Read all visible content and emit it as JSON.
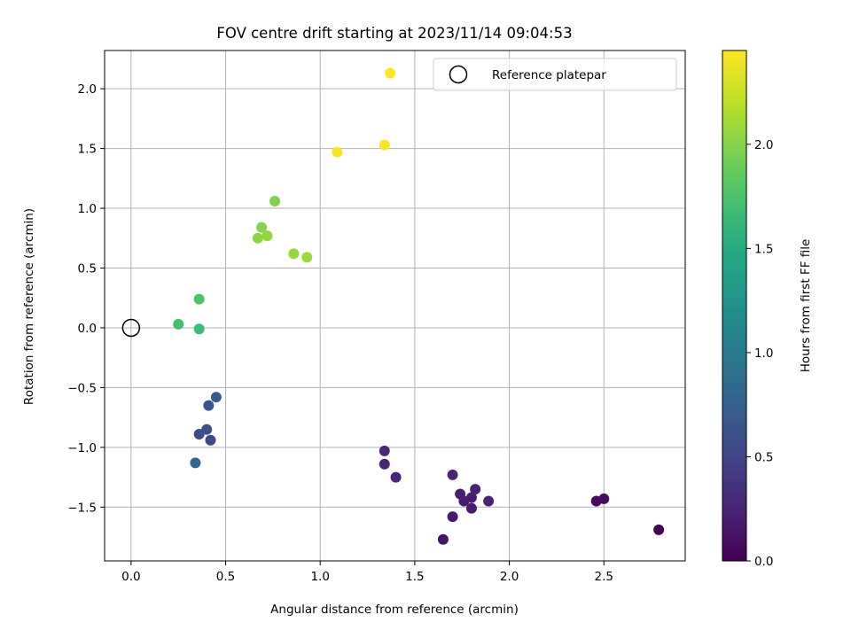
{
  "chart_data": {
    "type": "scatter",
    "title": "FOV centre drift starting at 2023/11/14 09:04:53",
    "xlabel": "Angular distance from reference (arcmin)",
    "ylabel": "Rotation from reference (arcmin)",
    "xlim": [
      -0.14,
      2.93
    ],
    "ylim": [
      -1.95,
      2.32
    ],
    "xticks": [
      0.0,
      0.5,
      1.0,
      1.5,
      2.0,
      2.5
    ],
    "yticks": [
      -1.5,
      -1.0,
      -0.5,
      0.0,
      0.5,
      1.0,
      1.5,
      2.0
    ],
    "xtick_labels": [
      "0.0",
      "0.5",
      "1.0",
      "1.5",
      "2.0",
      "2.5"
    ],
    "ytick_labels": [
      "−1.5",
      "−1.0",
      "−0.5",
      "0.0",
      "0.5",
      "1.0",
      "1.5",
      "2.0"
    ],
    "grid": true,
    "legend": {
      "location": "upper right",
      "entries": [
        {
          "label": "Reference platepar",
          "marker": "open-circle"
        }
      ]
    },
    "reference_point": {
      "x": 0.0,
      "y": 0.0
    },
    "colorbar": {
      "label": "Hours from first FF file",
      "colormap": "viridis",
      "range": [
        0.0,
        2.45
      ],
      "ticks": [
        0.0,
        0.5,
        1.0,
        1.5,
        2.0
      ],
      "tick_labels": [
        "0.0",
        "0.5",
        "1.0",
        "1.5",
        "2.0"
      ]
    },
    "series": [
      {
        "points": [
          {
            "x": 2.79,
            "y": -1.69,
            "c": 0.0
          },
          {
            "x": 2.46,
            "y": -1.45,
            "c": 0.05
          },
          {
            "x": 2.5,
            "y": -1.43,
            "c": 0.08
          },
          {
            "x": 1.65,
            "y": -1.77,
            "c": 0.14
          },
          {
            "x": 1.7,
            "y": -1.58,
            "c": 0.17
          },
          {
            "x": 1.8,
            "y": -1.51,
            "c": 0.19
          },
          {
            "x": 1.76,
            "y": -1.45,
            "c": 0.2
          },
          {
            "x": 1.8,
            "y": -1.42,
            "c": 0.21
          },
          {
            "x": 1.74,
            "y": -1.39,
            "c": 0.22
          },
          {
            "x": 1.82,
            "y": -1.35,
            "c": 0.23
          },
          {
            "x": 1.89,
            "y": -1.45,
            "c": 0.24
          },
          {
            "x": 1.7,
            "y": -1.23,
            "c": 0.25
          },
          {
            "x": 1.4,
            "y": -1.25,
            "c": 0.26
          },
          {
            "x": 1.34,
            "y": -1.14,
            "c": 0.27
          },
          {
            "x": 1.34,
            "y": -1.03,
            "c": 0.28
          },
          {
            "x": 0.42,
            "y": -0.94,
            "c": 0.52
          },
          {
            "x": 0.36,
            "y": -0.89,
            "c": 0.56
          },
          {
            "x": 0.4,
            "y": -0.85,
            "c": 0.6
          },
          {
            "x": 0.41,
            "y": -0.65,
            "c": 0.64
          },
          {
            "x": 0.45,
            "y": -0.58,
            "c": 0.68
          },
          {
            "x": 0.34,
            "y": -1.13,
            "c": 0.8
          },
          {
            "x": 0.36,
            "y": -0.01,
            "c": 1.68
          },
          {
            "x": 0.25,
            "y": 0.03,
            "c": 1.72
          },
          {
            "x": 0.36,
            "y": 0.24,
            "c": 1.76
          },
          {
            "x": 0.76,
            "y": 1.06,
            "c": 1.98
          },
          {
            "x": 0.69,
            "y": 0.84,
            "c": 2.0
          },
          {
            "x": 0.67,
            "y": 0.75,
            "c": 2.02
          },
          {
            "x": 0.72,
            "y": 0.77,
            "c": 2.04
          },
          {
            "x": 0.86,
            "y": 0.62,
            "c": 2.06
          },
          {
            "x": 0.93,
            "y": 0.59,
            "c": 2.08
          },
          {
            "x": 1.09,
            "y": 1.47,
            "c": 2.42
          },
          {
            "x": 1.34,
            "y": 1.53,
            "c": 2.43
          },
          {
            "x": 1.37,
            "y": 2.13,
            "c": 2.45
          }
        ]
      }
    ]
  }
}
